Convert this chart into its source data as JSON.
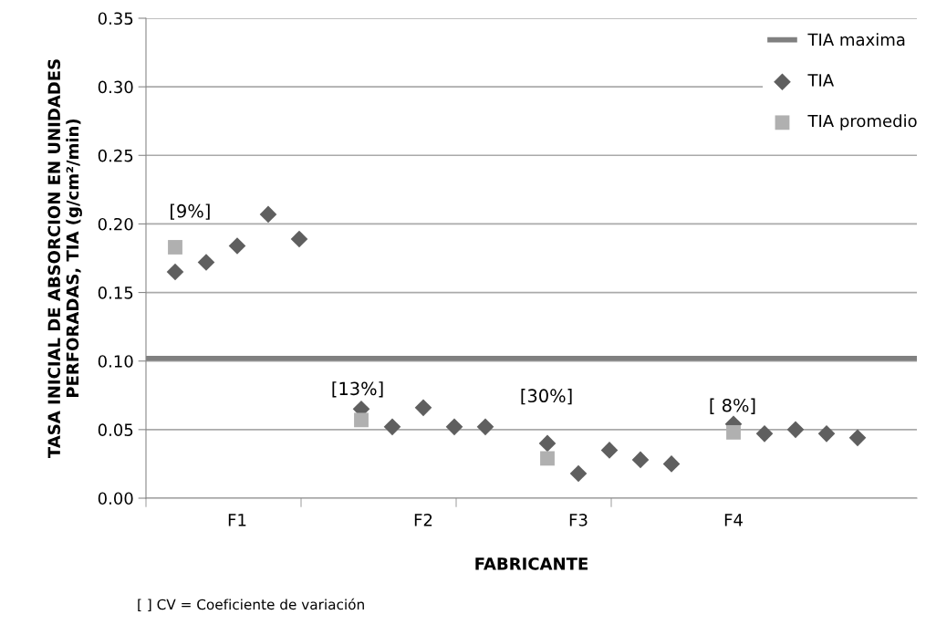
{
  "chart_data": {
    "type": "scatter",
    "xlabel": "FABRICANTE",
    "ylabel": "TASA INICIAL DE ABSORCION EN UNIDADES\nPERFORADAS, TIA (g/cm²/min)",
    "categories": [
      null,
      null,
      "F1",
      null,
      null,
      null,
      null,
      null,
      "F2",
      null,
      null,
      null,
      null,
      "F3",
      null,
      null,
      null,
      null,
      "F4",
      null,
      null,
      null,
      null,
      null
    ],
    "ylim": [
      0,
      0.35
    ],
    "yticks": [
      {
        "value": 0,
        "label": "0.00"
      },
      {
        "value": 0.05,
        "label": "0.05"
      },
      {
        "value": 0.1,
        "label": "0.10"
      },
      {
        "value": 0.15,
        "label": "0.15"
      },
      {
        "value": 0.2,
        "label": "0.20"
      },
      {
        "value": 0.25,
        "label": "0.25"
      },
      {
        "value": 0.3,
        "label": "0.30"
      },
      {
        "value": 0.35,
        "label": "0.35"
      }
    ],
    "grid": "y",
    "legend": "top right",
    "ref_lines": [
      {
        "axis": "y",
        "value": 0.102,
        "label": "TIA maxima",
        "color": "#808080"
      }
    ],
    "series": [
      {
        "name": "TIA",
        "marker": "diamond",
        "color": "#5f5f5f",
        "values": [
          0.165,
          0.172,
          0.184,
          0.207,
          0.189,
          null,
          0.065,
          0.052,
          0.066,
          0.052,
          0.052,
          null,
          0.04,
          0.018,
          0.035,
          0.028,
          0.025,
          null,
          0.054,
          0.047,
          0.05,
          0.047,
          0.044,
          null
        ]
      },
      {
        "name": "TIA promedio",
        "marker": "square",
        "color": "#b0b0b0",
        "values": [
          0.183,
          null,
          null,
          null,
          null,
          null,
          0.057,
          null,
          null,
          null,
          null,
          null,
          0.029,
          null,
          null,
          null,
          null,
          null,
          0.048,
          null,
          null,
          null,
          null,
          null
        ]
      }
    ],
    "annotations": [
      "[9%]",
      "[13%]",
      "[30%]",
      "[ 8%]",
      "[ ] CV = Coeficiente de variación"
    ]
  }
}
